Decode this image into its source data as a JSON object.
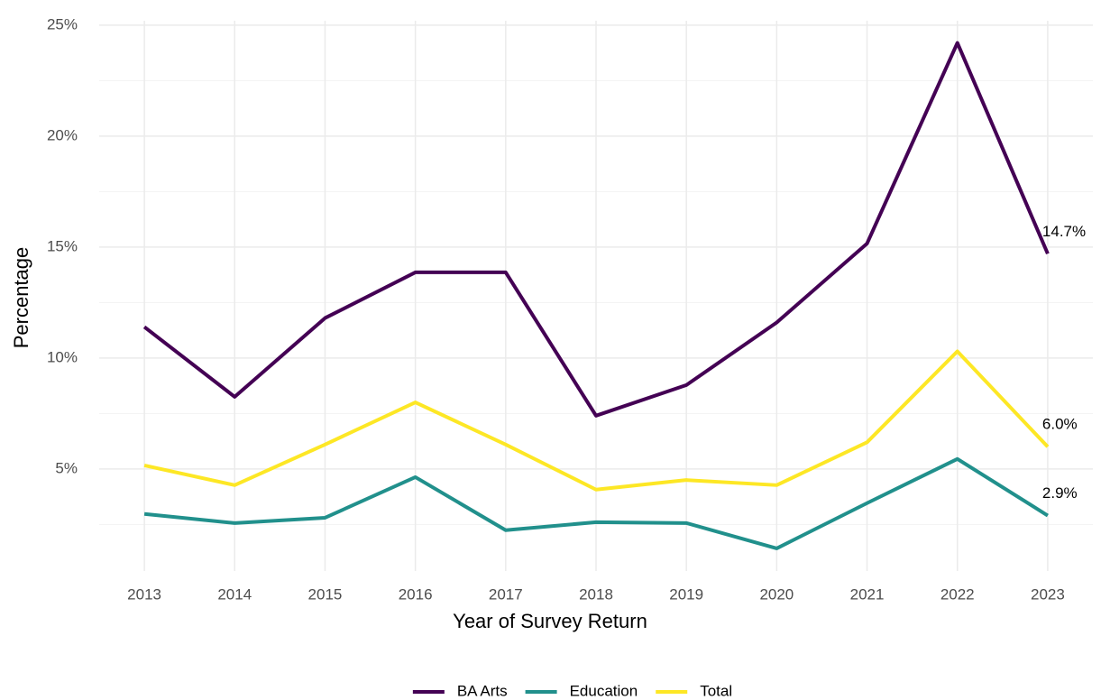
{
  "chart_data": {
    "type": "line",
    "x_label": "Year of Survey Return",
    "y_label": "Percentage",
    "x": [
      2013,
      2014,
      2015,
      2016,
      2017,
      2018,
      2019,
      2020,
      2021,
      2022,
      2023
    ],
    "series": [
      {
        "name": "BA Arts",
        "color": "#440154",
        "values": [
          11.4,
          8.25,
          11.8,
          13.86,
          13.86,
          7.4,
          8.78,
          11.6,
          15.16,
          24.2,
          14.7
        ],
        "value_labels": [
          null,
          null,
          null,
          null,
          null,
          null,
          null,
          null,
          null,
          null,
          "14.7%"
        ]
      },
      {
        "name": "Education",
        "color": "#21908C",
        "values": [
          2.97,
          2.56,
          2.8,
          4.63,
          2.24,
          2.6,
          2.56,
          1.42,
          3.46,
          5.45,
          2.9
        ],
        "value_labels": [
          null,
          null,
          null,
          null,
          null,
          null,
          null,
          null,
          null,
          null,
          "2.9%"
        ]
      },
      {
        "name": "Total",
        "color": "#FDE725",
        "values": [
          5.16,
          4.27,
          6.1,
          8.0,
          6.1,
          4.07,
          4.5,
          4.27,
          6.2,
          10.3,
          6.0
        ],
        "value_labels": [
          null,
          null,
          null,
          null,
          null,
          null,
          null,
          null,
          null,
          null,
          "6.0%"
        ]
      }
    ],
    "xlim": [
      2012.5,
      2023.5
    ],
    "xticks": [
      2013,
      2014,
      2015,
      2016,
      2017,
      2018,
      2019,
      2020,
      2021,
      2022,
      2023
    ],
    "ylim": [
      0.4,
      25.2
    ],
    "yticks": [
      {
        "value": 5,
        "label": "5%"
      },
      {
        "value": 10,
        "label": "10%"
      },
      {
        "value": 15,
        "label": "15%"
      },
      {
        "value": 20,
        "label": "20%"
      },
      {
        "value": 25,
        "label": "25%"
      }
    ],
    "minor_yticks": [
      2.5,
      7.5,
      12.5,
      17.5,
      22.5
    ],
    "grid": true,
    "legend": "bottom"
  }
}
